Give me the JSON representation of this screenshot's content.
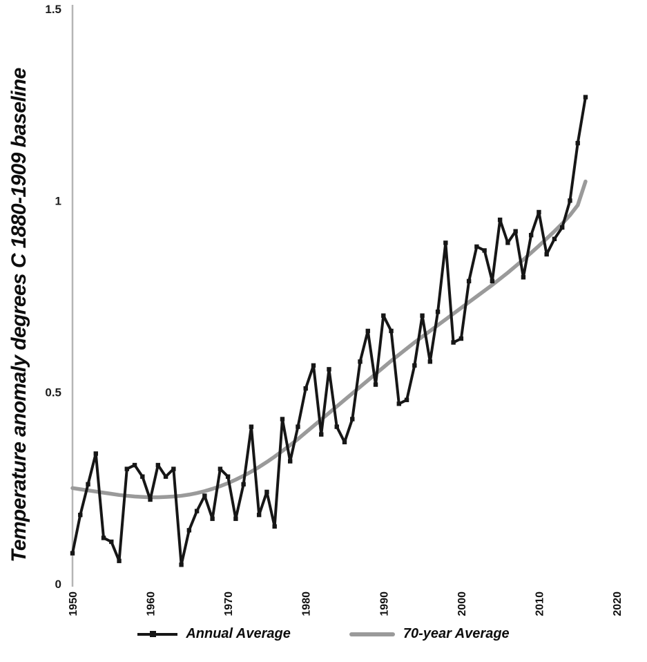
{
  "chart_data": {
    "type": "line",
    "title": "",
    "ylabel": "Temperature anomaly degrees C 1880-1909 baseline",
    "xlabel": "",
    "xlim": [
      1950,
      2020
    ],
    "ylim": [
      0,
      1.5
    ],
    "yticks": [
      0,
      0.5,
      1,
      1.5
    ],
    "xticks": [
      1950,
      1960,
      1970,
      1980,
      1990,
      2000,
      2010,
      2020
    ],
    "grid": false,
    "legend_position": "bottom",
    "axis_color": "#b5b5b5",
    "x": [
      1950,
      1951,
      1952,
      1953,
      1954,
      1955,
      1956,
      1957,
      1958,
      1959,
      1960,
      1961,
      1962,
      1963,
      1964,
      1965,
      1966,
      1967,
      1968,
      1969,
      1970,
      1971,
      1972,
      1973,
      1974,
      1975,
      1976,
      1977,
      1978,
      1979,
      1980,
      1981,
      1982,
      1983,
      1984,
      1985,
      1986,
      1987,
      1988,
      1989,
      1990,
      1991,
      1992,
      1993,
      1994,
      1995,
      1996,
      1997,
      1998,
      1999,
      2000,
      2001,
      2002,
      2003,
      2004,
      2005,
      2006,
      2007,
      2008,
      2009,
      2010,
      2011,
      2012,
      2013,
      2014,
      2015,
      2016
    ],
    "series": [
      {
        "name": "Annual Average",
        "color": "#161616",
        "marker": "square",
        "values": [
          0.08,
          0.18,
          0.26,
          0.34,
          0.12,
          0.11,
          0.06,
          0.3,
          0.31,
          0.28,
          0.22,
          0.31,
          0.28,
          0.3,
          0.05,
          0.14,
          0.19,
          0.23,
          0.17,
          0.3,
          0.28,
          0.17,
          0.26,
          0.41,
          0.18,
          0.24,
          0.15,
          0.43,
          0.32,
          0.41,
          0.51,
          0.57,
          0.39,
          0.56,
          0.41,
          0.37,
          0.43,
          0.58,
          0.66,
          0.52,
          0.7,
          0.66,
          0.47,
          0.48,
          0.57,
          0.7,
          0.58,
          0.71,
          0.89,
          0.63,
          0.64,
          0.79,
          0.88,
          0.87,
          0.79,
          0.95,
          0.89,
          0.92,
          0.8,
          0.91,
          0.97,
          0.86,
          0.9,
          0.93,
          1.0,
          1.15,
          1.27
        ]
      },
      {
        "name": "70-year Average",
        "color": "#9a9a9a",
        "marker": "none",
        "values": [
          0.25,
          0.247,
          0.244,
          0.241,
          0.238,
          0.235,
          0.232,
          0.23,
          0.228,
          0.227,
          0.226,
          0.226,
          0.227,
          0.228,
          0.23,
          0.233,
          0.237,
          0.242,
          0.248,
          0.255,
          0.263,
          0.272,
          0.282,
          0.293,
          0.305,
          0.318,
          0.332,
          0.347,
          0.362,
          0.378,
          0.395,
          0.412,
          0.429,
          0.446,
          0.463,
          0.48,
          0.497,
          0.514,
          0.531,
          0.548,
          0.565,
          0.582,
          0.598,
          0.614,
          0.63,
          0.645,
          0.66,
          0.675,
          0.69,
          0.705,
          0.72,
          0.735,
          0.75,
          0.765,
          0.78,
          0.796,
          0.812,
          0.829,
          0.846,
          0.864,
          0.882,
          0.901,
          0.92,
          0.94,
          0.962,
          0.988,
          1.05
        ]
      }
    ]
  }
}
